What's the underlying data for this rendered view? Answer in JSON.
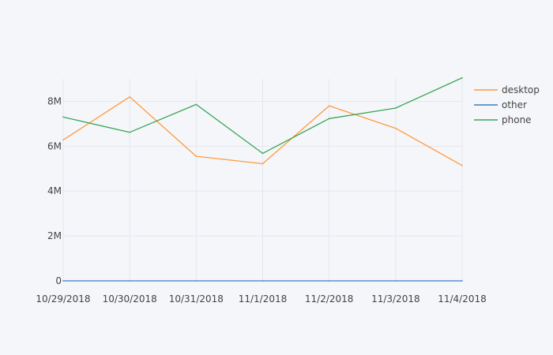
{
  "chart_data": {
    "type": "line",
    "title": "",
    "xlabel": "",
    "ylabel": "",
    "x": [
      "10/29/2018",
      "10/30/2018",
      "10/31/2018",
      "11/1/2018",
      "11/2/2018",
      "11/3/2018",
      "11/4/2018"
    ],
    "ylim": [
      0,
      9000000
    ],
    "y_ticks": [
      {
        "value": 0,
        "label": "0"
      },
      {
        "value": 2000000,
        "label": "2M"
      },
      {
        "value": 4000000,
        "label": "4M"
      },
      {
        "value": 6000000,
        "label": "6M"
      },
      {
        "value": 8000000,
        "label": "8M"
      }
    ],
    "grid": true,
    "legend_position": "top-right",
    "series": [
      {
        "name": "desktop",
        "color": "#ff9a3d",
        "values": [
          6280000,
          8200000,
          5550000,
          5220000,
          7800000,
          6800000,
          5140000
        ]
      },
      {
        "name": "other",
        "color": "#3d7bc4",
        "values": [
          0,
          0,
          0,
          0,
          0,
          0,
          0
        ]
      },
      {
        "name": "phone",
        "color": "#3aa654",
        "values": [
          7300000,
          6620000,
          7860000,
          5680000,
          7230000,
          7700000,
          9050000
        ]
      }
    ]
  }
}
